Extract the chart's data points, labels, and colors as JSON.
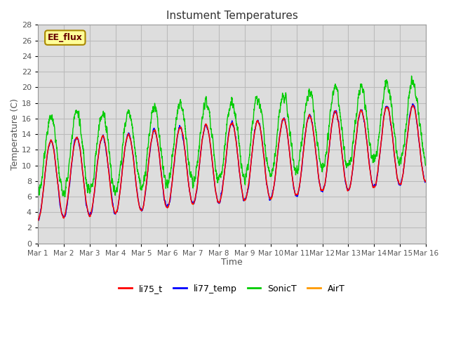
{
  "title": "Instument Temperatures",
  "xlabel": "Time",
  "ylabel": "Temperature (C)",
  "ylim": [
    0,
    28
  ],
  "yticks": [
    0,
    2,
    4,
    6,
    8,
    10,
    12,
    14,
    16,
    18,
    20,
    22,
    24,
    26,
    28
  ],
  "xtick_labels": [
    "Mar 1",
    "Mar 2",
    "Mar 3",
    "Mar 4",
    "Mar 5",
    "Mar 6",
    "Mar 7",
    "Mar 8",
    "Mar 9",
    "Mar 10",
    "Mar 11",
    "Mar 12",
    "Mar 13",
    "Mar 14",
    "Mar 15",
    "Mar 16"
  ],
  "series_colors": {
    "li75_t": "#ff0000",
    "li77_temp": "#0000ff",
    "SonicT": "#00cc00",
    "AirT": "#ff9900"
  },
  "annotation_text": "EE_flux",
  "annotation_bg": "#ffff99",
  "annotation_border": "#aa8800",
  "plot_bg": "#dddddd",
  "fig_bg": "#ffffff",
  "grid_color": "#bbbbbb",
  "title_color": "#333333",
  "axis_label_color": "#555555",
  "n_points": 2880,
  "days": 15,
  "linewidth": 1.0
}
